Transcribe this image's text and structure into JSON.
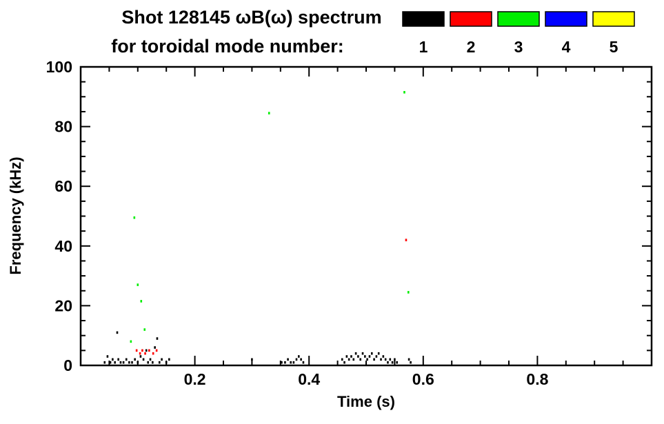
{
  "chart_data": {
    "type": "scatter",
    "title_line1": "Shot 128145 ωB(ω) spectrum",
    "title_line2": "for toroidal mode number:",
    "xlabel": "Time (s)",
    "ylabel": "Frequency (kHz)",
    "xlim": [
      0.0,
      1.0
    ],
    "ylim": [
      0,
      100
    ],
    "x_minor_step": 0.05,
    "y_minor_step": 5,
    "grid": false,
    "legend_position": "top-right",
    "xticks": [
      {
        "value": 0.2,
        "label": "0.2"
      },
      {
        "value": 0.4,
        "label": "0.4"
      },
      {
        "value": 0.6,
        "label": "0.6"
      },
      {
        "value": 0.8,
        "label": "0.8"
      }
    ],
    "yticks": [
      {
        "value": 0,
        "label": "0"
      },
      {
        "value": 20,
        "label": "20"
      },
      {
        "value": 40,
        "label": "40"
      },
      {
        "value": 60,
        "label": "60"
      },
      {
        "value": 80,
        "label": "80"
      },
      {
        "value": 100,
        "label": "100"
      }
    ],
    "legend": [
      {
        "label": "1",
        "color": "#000000"
      },
      {
        "label": "2",
        "color": "#ff0000"
      },
      {
        "label": "3",
        "color": "#00ee00"
      },
      {
        "label": "4",
        "color": "#0000ff"
      },
      {
        "label": "5",
        "color": "#ffff00"
      }
    ],
    "series": [
      {
        "name": "mode-1",
        "color": "#000000",
        "points": [
          [
            0.042,
            1
          ],
          [
            0.047,
            3
          ],
          [
            0.052,
            1
          ],
          [
            0.056,
            2
          ],
          [
            0.06,
            1
          ],
          [
            0.064,
            11
          ],
          [
            0.066,
            2
          ],
          [
            0.07,
            1
          ],
          [
            0.075,
            1
          ],
          [
            0.08,
            2
          ],
          [
            0.085,
            1
          ],
          [
            0.09,
            1
          ],
          [
            0.095,
            2
          ],
          [
            0.1,
            1
          ],
          [
            0.105,
            3
          ],
          [
            0.11,
            2
          ],
          [
            0.115,
            5
          ],
          [
            0.118,
            1
          ],
          [
            0.122,
            2
          ],
          [
            0.126,
            1
          ],
          [
            0.13,
            6
          ],
          [
            0.134,
            9
          ],
          [
            0.138,
            1
          ],
          [
            0.142,
            2
          ],
          [
            0.15,
            1
          ],
          [
            0.155,
            2
          ],
          [
            0.3,
            2
          ],
          [
            0.352,
            1
          ],
          [
            0.358,
            1
          ],
          [
            0.363,
            2
          ],
          [
            0.368,
            1
          ],
          [
            0.373,
            1
          ],
          [
            0.378,
            2
          ],
          [
            0.382,
            3
          ],
          [
            0.386,
            2
          ],
          [
            0.39,
            1
          ],
          [
            0.458,
            2
          ],
          [
            0.462,
            1
          ],
          [
            0.466,
            3
          ],
          [
            0.47,
            2
          ],
          [
            0.474,
            3
          ],
          [
            0.478,
            2
          ],
          [
            0.482,
            4
          ],
          [
            0.486,
            3
          ],
          [
            0.49,
            2
          ],
          [
            0.494,
            4
          ],
          [
            0.498,
            3
          ],
          [
            0.502,
            2
          ],
          [
            0.506,
            3
          ],
          [
            0.51,
            4
          ],
          [
            0.514,
            2
          ],
          [
            0.518,
            3
          ],
          [
            0.522,
            4
          ],
          [
            0.526,
            2
          ],
          [
            0.53,
            3
          ],
          [
            0.534,
            2
          ],
          [
            0.538,
            1
          ],
          [
            0.542,
            2
          ],
          [
            0.546,
            1
          ],
          [
            0.55,
            2
          ],
          [
            0.554,
            1
          ],
          [
            0.575,
            2
          ],
          [
            0.578,
            1
          ]
        ]
      },
      {
        "name": "mode-2",
        "color": "#ff0000",
        "points": [
          [
            0.098,
            5
          ],
          [
            0.104,
            4
          ],
          [
            0.108,
            5
          ],
          [
            0.113,
            4
          ],
          [
            0.12,
            5
          ],
          [
            0.127,
            4
          ],
          [
            0.133,
            5
          ],
          [
            0.57,
            42
          ]
        ]
      },
      {
        "name": "mode-3",
        "color": "#00ee00",
        "points": [
          [
            0.088,
            8
          ],
          [
            0.094,
            49.5
          ],
          [
            0.1,
            27
          ],
          [
            0.106,
            21.5
          ],
          [
            0.112,
            12
          ],
          [
            0.33,
            84.5
          ],
          [
            0.567,
            91.5
          ],
          [
            0.574,
            24.5
          ]
        ]
      },
      {
        "name": "mode-4",
        "color": "#0000ff",
        "points": []
      },
      {
        "name": "mode-5",
        "color": "#ffff00",
        "points": []
      }
    ]
  }
}
